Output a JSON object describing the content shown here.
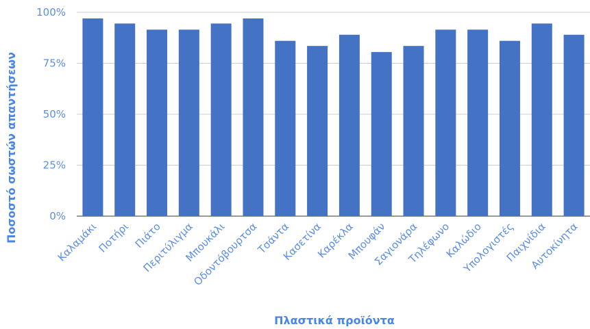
{
  "chart_data": {
    "type": "bar",
    "title": "",
    "xlabel": "Πλαστικά προϊόντα",
    "ylabel": "Ποσοστό σωστών απαντήσεων",
    "ylim": [
      0,
      100
    ],
    "yticks": [
      "0%",
      "25%",
      "50%",
      "75%",
      "100%"
    ],
    "ytick_values": [
      0,
      25,
      50,
      75,
      100
    ],
    "grid": true,
    "legend": "none",
    "bar_color": "#4472c4",
    "categories": [
      "Καλαμάκι",
      "Ποτήρι",
      "Πιάτο",
      "Περιτύλιγμα",
      "Μπουκάλι",
      "Οδοντόβουρτσα",
      "Τσάντα",
      "Κασετίνα",
      "Καρέκλα",
      "Μπουφάν",
      "Σαγιονάρα",
      "Τηλέφωνο",
      "Καλώδιο",
      "Υπολογιστές",
      "Παιχνίδια",
      "Αυτοκίνητα"
    ],
    "values": [
      97,
      94.5,
      91.5,
      91.5,
      94.5,
      97,
      86,
      83.5,
      89,
      80.5,
      83.5,
      91.5,
      91.5,
      86,
      94.5,
      89
    ]
  }
}
